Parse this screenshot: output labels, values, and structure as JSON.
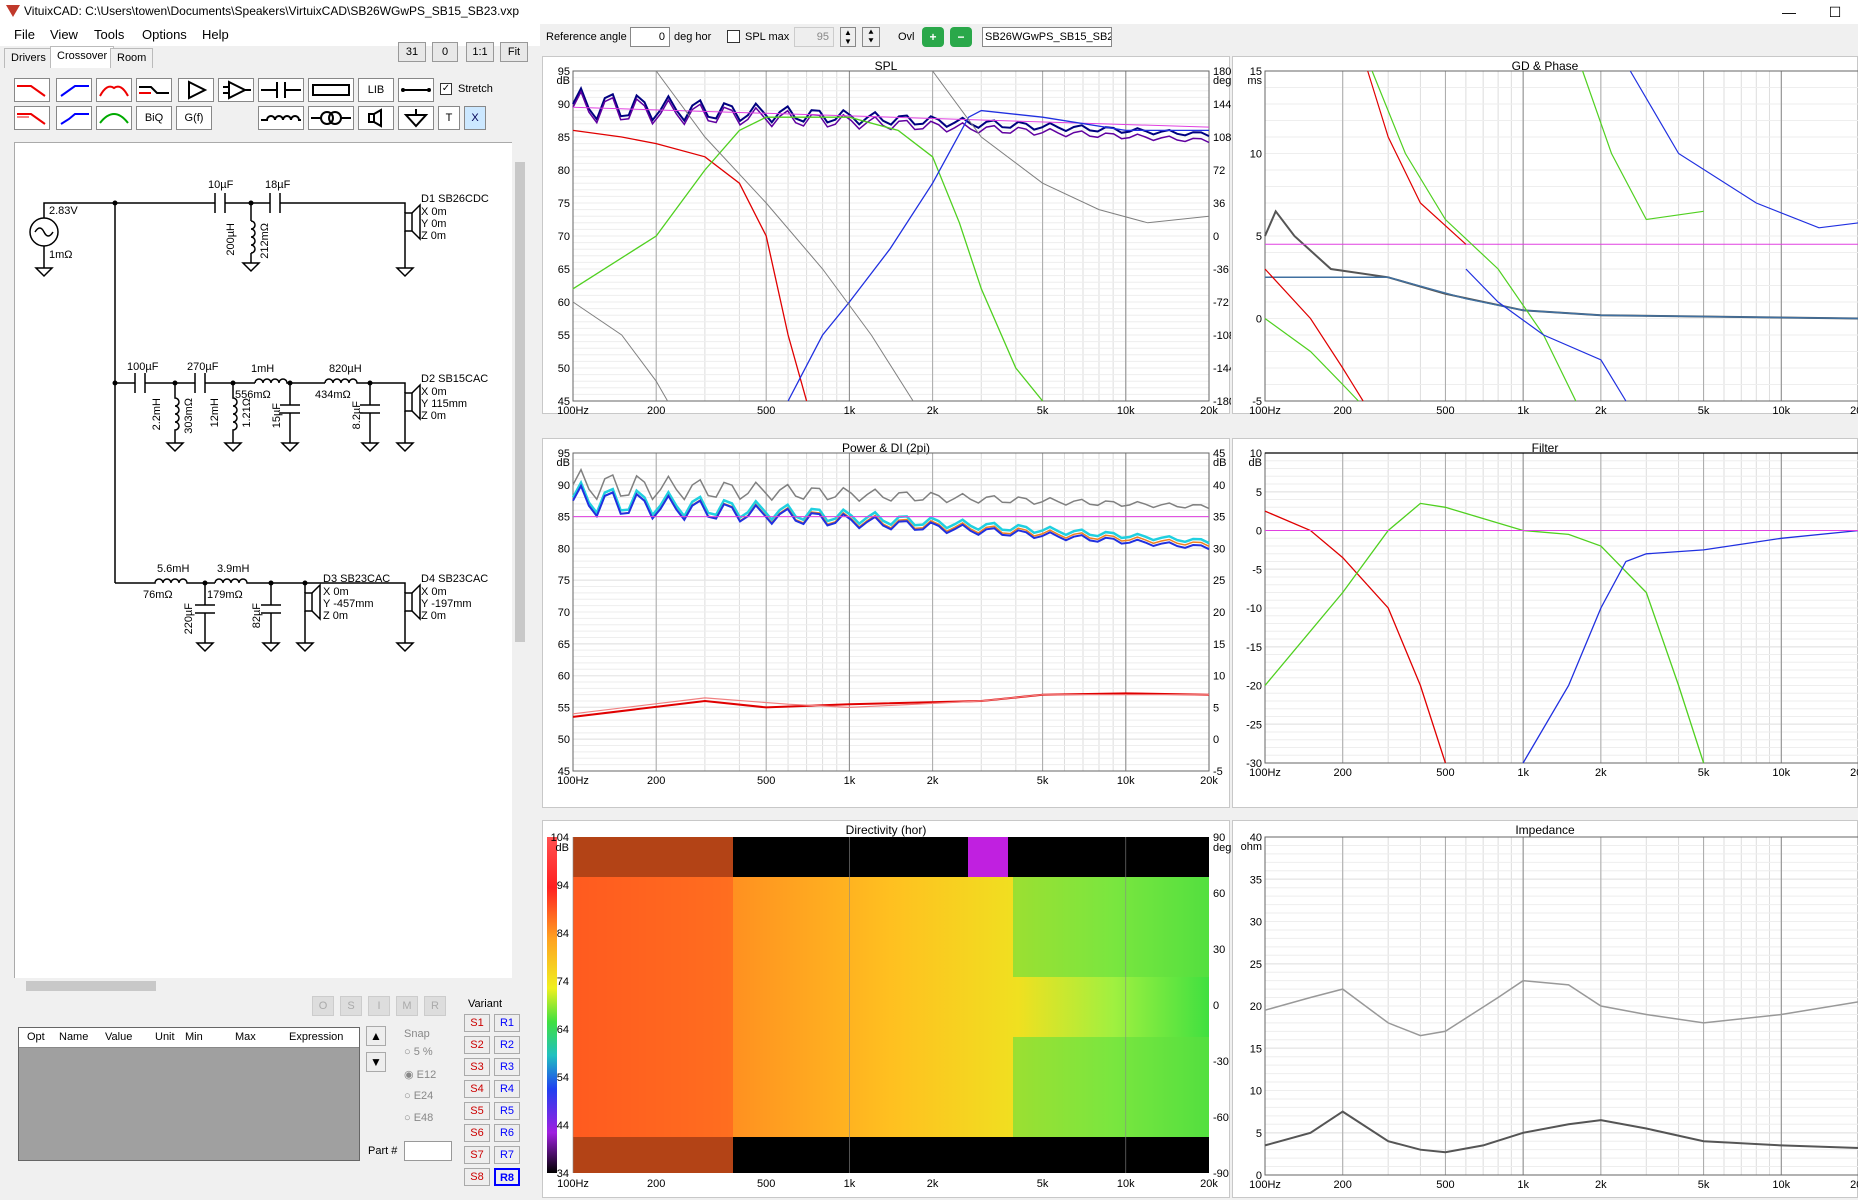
{
  "window": {
    "title": "VituixCAD: C:\\Users\\towen\\Documents\\Speakers\\VirtuixCAD\\SB26WGwPS_SB15_SB23.vxp",
    "minimize": "—",
    "maximize": "☐"
  },
  "menu": [
    "File",
    "View",
    "Tools",
    "Options",
    "Help"
  ],
  "tabs": [
    "Drivers",
    "Crossover",
    "Room"
  ],
  "small_buttons": [
    "31",
    "0",
    "1:1",
    "Fit"
  ],
  "toolbar": {
    "lib": "LIB",
    "stretch_label": "Stretch",
    "biq": "BiQ",
    "gf": "G(f)",
    "t": "T",
    "x": "X"
  },
  "top_controls": {
    "ref_angle_label": "Reference angle",
    "ref_angle_value": "0",
    "deg_hor": "deg hor",
    "spl_max_label": "SPL max",
    "spl_max_value": "95",
    "ovl_label": "Ovl",
    "ovl_name": "SB26WGwPS_SB15_SB2"
  },
  "schematic": {
    "source": {
      "voltage": "2.83V",
      "resistance": "1mΩ"
    },
    "d1": {
      "name": "D1 SB26CDC",
      "x": "X 0m",
      "y": "Y 0m",
      "z": "Z 0m",
      "c1": "10µF",
      "c2": "18µF",
      "l1": "200µH",
      "r1": "212mΩ"
    },
    "d2": {
      "name": "D2 SB15CAC",
      "x": "X 0m",
      "y": "Y 115mm",
      "z": "Z 0m",
      "c1": "100µF",
      "c2": "270µF",
      "l_a": "1mH",
      "r_a": "556mΩ",
      "l_b": "820µH",
      "r_b": "434mΩ",
      "l1": "2.2mH",
      "r1": "303mΩ",
      "l2": "12mH",
      "r2": "1.21Ω",
      "c3": "15µF",
      "c4": "8.2µF"
    },
    "d3": {
      "name": "D3 SB23CAC",
      "x": "X 0m",
      "y": "Y -457mm",
      "z": "Z 0m",
      "l_a": "5.6mH",
      "r_a": "76mΩ",
      "l_b": "3.9mH",
      "r_b": "179mΩ",
      "c1": "220µF",
      "c2": "82µF"
    },
    "d4": {
      "name": "D4 SB23CAC",
      "x": "X 0m",
      "y": "Y -197mm",
      "z": "Z 0m"
    }
  },
  "param_table": {
    "headers": [
      "Opt",
      "Name",
      "Value",
      "Unit",
      "Min",
      "Max",
      "Expression"
    ]
  },
  "optimizer": {
    "buttons": [
      "O",
      "S",
      "I",
      "M",
      "R"
    ],
    "snap_label": "Snap",
    "snap_options": [
      "5 %",
      "E12",
      "E24",
      "E48"
    ],
    "part_label": "Part #"
  },
  "variant": {
    "label": "Variant",
    "s": [
      "S1",
      "S2",
      "S3",
      "S4",
      "S5",
      "S6",
      "S7",
      "S8"
    ],
    "r": [
      "R1",
      "R2",
      "R3",
      "R4",
      "R5",
      "R6",
      "R7",
      "R8"
    ],
    "selected": "R8"
  },
  "freq_ticks": [
    "100Hz",
    "200",
    "500",
    "1k",
    "2k",
    "5k",
    "10k",
    "20k"
  ],
  "charts": [
    {
      "title": "SPL",
      "yunit": "dB",
      "y_ticks": [
        "95",
        "90",
        "85",
        "80",
        "75",
        "70",
        "65",
        "60",
        "55",
        "50",
        "45"
      ],
      "y2unit": "deg",
      "y2_ticks": [
        "180",
        "144",
        "108",
        "72",
        "36",
        "0",
        "-36",
        "-72",
        "-108",
        "-144",
        "-180"
      ]
    },
    {
      "title": "GD & Phase",
      "yunit": "ms",
      "y_ticks": [
        "15",
        "10",
        "5",
        "0",
        "-5"
      ]
    },
    {
      "title": "Power & DI (2pi)",
      "yunit": "dB",
      "y_ticks": [
        "95",
        "90",
        "85",
        "80",
        "75",
        "70",
        "65",
        "60",
        "55",
        "50",
        "45"
      ],
      "y2unit": "dB",
      "y2_ticks": [
        "45",
        "40",
        "35",
        "30",
        "25",
        "20",
        "15",
        "10",
        "5",
        "0",
        "-5"
      ]
    },
    {
      "title": "Filter",
      "yunit": "dB",
      "y_ticks": [
        "10",
        "5",
        "0",
        "-5",
        "-10",
        "-15",
        "-20",
        "-25",
        "-30"
      ]
    },
    {
      "title": "Directivity (hor)",
      "yunit": "dB",
      "y_ticks": [
        "104",
        "94",
        "84",
        "74",
        "64",
        "54",
        "44",
        "34"
      ],
      "y2unit": "deg",
      "y2_ticks": [
        "90",
        "60",
        "30",
        "0",
        "-30",
        "-60",
        "-90"
      ]
    },
    {
      "title": "Impedance",
      "yunit": "ohm",
      "y_ticks": [
        "40",
        "35",
        "30",
        "25",
        "20",
        "15",
        "10",
        "5",
        "0"
      ]
    }
  ],
  "colors": {
    "red": "#e00000",
    "green": "#50d020",
    "blue": "#2030e0",
    "purple": "#6000a0",
    "gray": "#808080",
    "magenta": "#e040e0",
    "cyan": "#20d0e0",
    "orange": "#f08020",
    "navy": "#000080"
  }
}
